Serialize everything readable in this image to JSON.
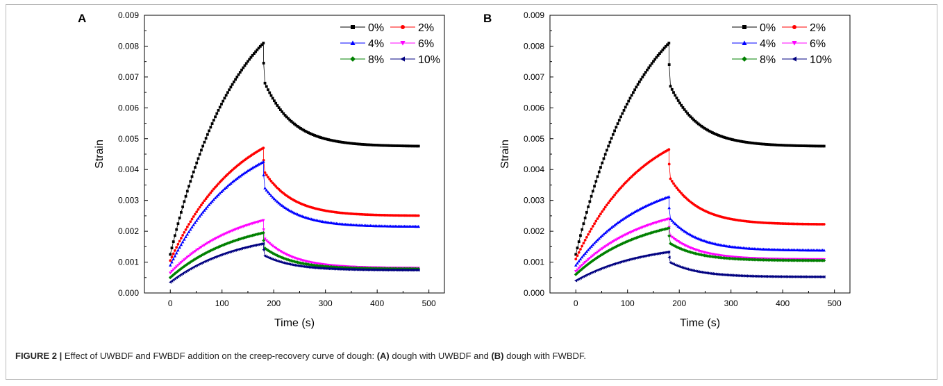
{
  "caption": {
    "label": "FIGURE 2 |",
    "part1": " Effect of UWBDF and FWBDF addition on the creep-recovery curve of dough: ",
    "a": "(A)",
    "part2": " dough with UWBDF and ",
    "b": "(B)",
    "part3": " dough with FWBDF."
  },
  "chart_data": [
    {
      "panel": "A",
      "type": "scatter",
      "xlabel": "Time (s)",
      "ylabel": "Strain",
      "xlim": [
        -50,
        530
      ],
      "ylim": [
        0,
        0.009
      ],
      "xticks": [
        "0",
        "100",
        "200",
        "300",
        "400",
        "500"
      ],
      "yticks": [
        "0.000",
        "0.001",
        "0.002",
        "0.003",
        "0.004",
        "0.005",
        "0.006",
        "0.007",
        "0.008",
        "0.009"
      ],
      "legend_position": "top-right",
      "creep_end_time": 180,
      "end_time": 480,
      "series": [
        {
          "name": "0%",
          "color": "#000000",
          "marker": "square",
          "start": 0.00125,
          "peak": 0.0081,
          "recovery_start": 0.0068,
          "final": 0.00475
        },
        {
          "name": "2%",
          "color": "#ff0000",
          "marker": "circle",
          "start": 0.00105,
          "peak": 0.0047,
          "recovery_start": 0.0039,
          "final": 0.0025
        },
        {
          "name": "4%",
          "color": "#0000ff",
          "marker": "triangle-up",
          "start": 0.0009,
          "peak": 0.00425,
          "recovery_start": 0.0034,
          "final": 0.00215
        },
        {
          "name": "6%",
          "color": "#ff00ff",
          "marker": "triangle-down",
          "start": 0.00065,
          "peak": 0.00235,
          "recovery_start": 0.00175,
          "final": 0.0008
        },
        {
          "name": "8%",
          "color": "#008000",
          "marker": "diamond",
          "start": 0.0005,
          "peak": 0.00195,
          "recovery_start": 0.00145,
          "final": 0.00078
        },
        {
          "name": "10%",
          "color": "#000080",
          "marker": "triangle-left",
          "start": 0.00035,
          "peak": 0.0016,
          "recovery_start": 0.0012,
          "final": 0.00074
        }
      ]
    },
    {
      "panel": "B",
      "type": "scatter",
      "xlabel": "Time (s)",
      "ylabel": "Strain",
      "xlim": [
        -50,
        530
      ],
      "ylim": [
        0,
        0.009
      ],
      "xticks": [
        "0",
        "100",
        "200",
        "300",
        "400",
        "500"
      ],
      "yticks": [
        "0.000",
        "0.001",
        "0.002",
        "0.003",
        "0.004",
        "0.005",
        "0.006",
        "0.007",
        "0.008",
        "0.009"
      ],
      "legend_position": "top-right",
      "creep_end_time": 180,
      "end_time": 480,
      "series": [
        {
          "name": "0%",
          "color": "#000000",
          "marker": "square",
          "start": 0.00125,
          "peak": 0.0081,
          "recovery_start": 0.0067,
          "final": 0.00475
        },
        {
          "name": "2%",
          "color": "#ff0000",
          "marker": "circle",
          "start": 0.0011,
          "peak": 0.00465,
          "recovery_start": 0.0037,
          "final": 0.00222
        },
        {
          "name": "4%",
          "color": "#0000ff",
          "marker": "triangle-up",
          "start": 0.0009,
          "peak": 0.00312,
          "recovery_start": 0.0024,
          "final": 0.00138
        },
        {
          "name": "6%",
          "color": "#ff00ff",
          "marker": "triangle-down",
          "start": 0.0007,
          "peak": 0.0024,
          "recovery_start": 0.00185,
          "final": 0.00108
        },
        {
          "name": "8%",
          "color": "#008000",
          "marker": "diamond",
          "start": 0.0006,
          "peak": 0.0021,
          "recovery_start": 0.0016,
          "final": 0.00105
        },
        {
          "name": "10%",
          "color": "#000080",
          "marker": "triangle-left",
          "start": 0.0004,
          "peak": 0.00133,
          "recovery_start": 0.00098,
          "final": 0.00052
        }
      ]
    }
  ]
}
